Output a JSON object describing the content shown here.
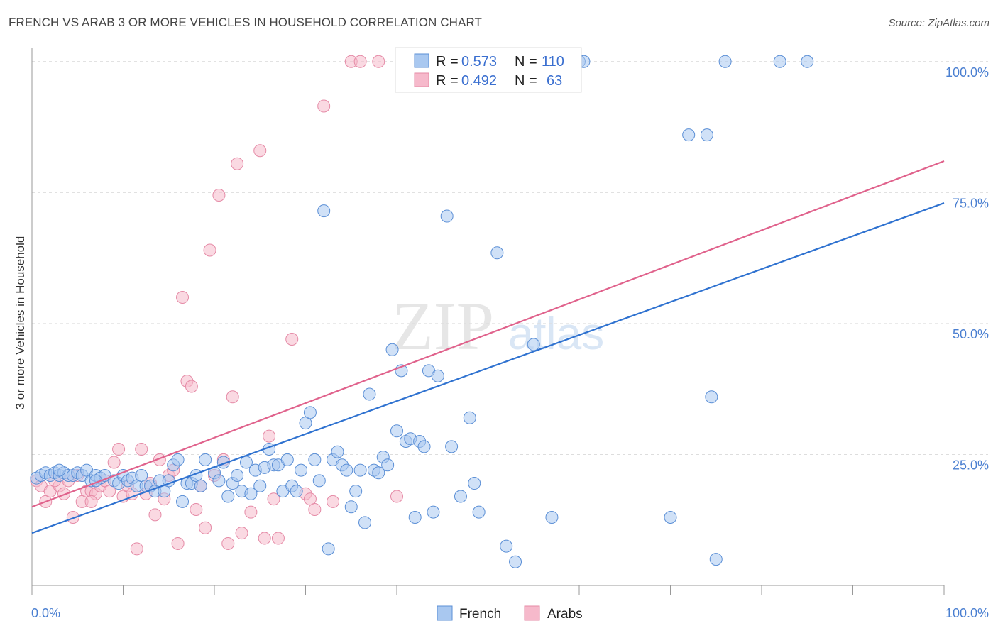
{
  "title": "FRENCH VS ARAB 3 OR MORE VEHICLES IN HOUSEHOLD CORRELATION CHART",
  "source": "Source: ZipAtlas.com",
  "watermark": {
    "zip": "ZIP",
    "atlas": "atlas"
  },
  "colors": {
    "french_fill": "#a9c8f0",
    "french_stroke": "#5b8fd6",
    "french_line": "#2f72d0",
    "arabs_fill": "#f6b9cb",
    "arabs_stroke": "#e58aa6",
    "arabs_line": "#e0628c",
    "tick": "#4a7fd1",
    "grid": "#dddddd"
  },
  "legend_box": {
    "r_label": "R =",
    "n_label": "N =",
    "french_r": "0.573",
    "french_n": "110",
    "arabs_r": "0.492",
    "arabs_n": "63"
  },
  "bottom_legend": {
    "french": "French",
    "arabs": "Arabs"
  },
  "chart_data": {
    "type": "scatter",
    "title": "FRENCH VS ARAB 3 OR MORE VEHICLES IN HOUSEHOLD CORRELATION CHART",
    "xlabel": "",
    "ylabel": "3 or more Vehicles in Household",
    "xlim": [
      0,
      100
    ],
    "ylim": [
      0,
      102
    ],
    "x_tick_labels": [
      "0.0%",
      "100.0%"
    ],
    "y_tick_labels": [
      "25.0%",
      "50.0%",
      "75.0%",
      "100.0%"
    ],
    "y_ticks": [
      25,
      50,
      75,
      100
    ],
    "grid": true,
    "legend_position": "top-center",
    "series": [
      {
        "name": "French",
        "r": 0.573,
        "n": 110,
        "trend": [
          [
            0,
            10
          ],
          [
            100,
            73
          ]
        ],
        "points": [
          [
            0.5,
            20.5
          ],
          [
            1,
            21
          ],
          [
            1.5,
            21.5
          ],
          [
            2,
            21
          ],
          [
            2.5,
            21.5
          ],
          [
            3,
            21
          ],
          [
            3.5,
            21.5
          ],
          [
            4,
            21
          ],
          [
            4.5,
            21
          ],
          [
            5,
            21.5
          ],
          [
            5.5,
            21
          ],
          [
            6,
            22
          ],
          [
            6.5,
            20
          ],
          [
            7,
            21
          ],
          [
            7.5,
            20.5
          ],
          [
            8,
            21
          ],
          [
            9,
            20
          ],
          [
            9.5,
            19.5
          ],
          [
            10,
            21
          ],
          [
            10.5,
            20
          ],
          [
            11,
            20.5
          ],
          [
            11.5,
            19
          ],
          [
            12,
            21
          ],
          [
            12.5,
            19
          ],
          [
            13,
            19
          ],
          [
            13.5,
            18
          ],
          [
            14,
            20
          ],
          [
            14.5,
            18
          ],
          [
            15,
            20
          ],
          [
            15.5,
            23
          ],
          [
            16,
            24
          ],
          [
            16.5,
            16
          ],
          [
            17,
            19.5
          ],
          [
            17.5,
            19.5
          ],
          [
            18,
            21
          ],
          [
            18.5,
            19
          ],
          [
            19,
            24
          ],
          [
            20,
            21.5
          ],
          [
            20.5,
            20
          ],
          [
            21,
            23.5
          ],
          [
            21.5,
            17
          ],
          [
            22,
            19.5
          ],
          [
            22.5,
            21
          ],
          [
            23,
            18
          ],
          [
            23.5,
            23.5
          ],
          [
            24,
            17.5
          ],
          [
            24.5,
            22
          ],
          [
            25,
            19
          ],
          [
            25.5,
            22.5
          ],
          [
            26,
            26
          ],
          [
            26.5,
            23
          ],
          [
            27,
            23
          ],
          [
            27.5,
            18
          ],
          [
            28,
            24
          ],
          [
            28.5,
            19
          ],
          [
            29,
            18
          ],
          [
            29.5,
            22
          ],
          [
            30,
            31
          ],
          [
            30.5,
            33
          ],
          [
            31,
            24
          ],
          [
            31.5,
            20
          ],
          [
            32,
            71.5
          ],
          [
            32.5,
            7
          ],
          [
            33,
            24
          ],
          [
            33.5,
            25.5
          ],
          [
            34,
            23
          ],
          [
            34.5,
            22
          ],
          [
            35,
            15
          ],
          [
            35.5,
            18
          ],
          [
            36,
            22
          ],
          [
            36.5,
            12
          ],
          [
            37,
            36.5
          ],
          [
            37.5,
            22
          ],
          [
            38,
            21.5
          ],
          [
            38.5,
            24.5
          ],
          [
            39,
            23
          ],
          [
            39.5,
            45
          ],
          [
            40,
            29.5
          ],
          [
            40.5,
            41
          ],
          [
            41,
            27.5
          ],
          [
            41.5,
            28
          ],
          [
            42,
            13
          ],
          [
            42.5,
            27.5
          ],
          [
            43,
            26.5
          ],
          [
            43.5,
            41
          ],
          [
            44,
            14
          ],
          [
            44.5,
            40
          ],
          [
            45.5,
            70.5
          ],
          [
            46,
            26.5
          ],
          [
            47,
            17
          ],
          [
            48,
            32
          ],
          [
            48.5,
            19.5
          ],
          [
            49,
            14
          ],
          [
            51,
            63.5
          ],
          [
            52,
            7.5
          ],
          [
            53,
            4.5
          ],
          [
            55,
            46
          ],
          [
            57,
            13
          ],
          [
            60,
            100
          ],
          [
            60.5,
            100
          ],
          [
            70,
            13
          ],
          [
            72,
            86
          ],
          [
            74,
            86
          ],
          [
            74.5,
            36
          ],
          [
            75,
            5
          ],
          [
            76,
            100
          ],
          [
            82,
            100
          ],
          [
            85,
            100
          ],
          [
            3,
            22
          ],
          [
            7,
            20
          ]
        ]
      },
      {
        "name": "Arabs",
        "r": 0.492,
        "n": 63,
        "trend": [
          [
            0,
            15
          ],
          [
            100,
            81
          ]
        ],
        "points": [
          [
            0.5,
            20
          ],
          [
            1,
            19
          ],
          [
            1.5,
            16
          ],
          [
            2,
            18
          ],
          [
            3,
            19
          ],
          [
            3.5,
            17.5
          ],
          [
            4,
            20
          ],
          [
            4.5,
            13
          ],
          [
            5,
            21
          ],
          [
            5.5,
            16
          ],
          [
            6,
            18
          ],
          [
            6.5,
            18
          ],
          [
            7,
            17.5
          ],
          [
            7.5,
            19
          ],
          [
            8,
            20
          ],
          [
            8.5,
            18
          ],
          [
            9,
            23.5
          ],
          [
            9.5,
            26
          ],
          [
            10,
            17
          ],
          [
            10.5,
            19
          ],
          [
            11,
            17.5
          ],
          [
            11.5,
            7
          ],
          [
            12,
            26
          ],
          [
            12.5,
            17.5
          ],
          [
            13,
            19.5
          ],
          [
            13.5,
            13.5
          ],
          [
            14,
            24
          ],
          [
            14.5,
            16.5
          ],
          [
            15,
            21
          ],
          [
            15.5,
            22
          ],
          [
            16,
            8
          ],
          [
            16.5,
            55
          ],
          [
            17,
            39
          ],
          [
            17.5,
            38
          ],
          [
            18,
            14.5
          ],
          [
            18.5,
            19
          ],
          [
            19,
            11
          ],
          [
            19.5,
            64
          ],
          [
            20,
            21
          ],
          [
            20.5,
            74.5
          ],
          [
            21,
            24
          ],
          [
            21.5,
            8
          ],
          [
            22,
            36
          ],
          [
            22.5,
            80.5
          ],
          [
            23,
            10
          ],
          [
            24,
            14
          ],
          [
            25,
            83
          ],
          [
            25.5,
            9
          ],
          [
            26,
            28.5
          ],
          [
            26.5,
            16.5
          ],
          [
            27,
            9
          ],
          [
            28.5,
            47
          ],
          [
            30,
            17.5
          ],
          [
            30.5,
            16.5
          ],
          [
            31,
            14.5
          ],
          [
            32,
            91.5
          ],
          [
            33,
            16
          ],
          [
            35,
            100
          ],
          [
            36,
            100
          ],
          [
            38,
            100
          ],
          [
            40,
            17
          ],
          [
            2.5,
            20
          ],
          [
            6.5,
            16
          ]
        ]
      }
    ]
  }
}
